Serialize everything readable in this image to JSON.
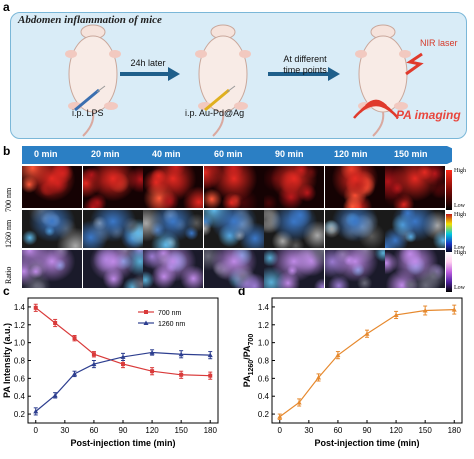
{
  "figure": {
    "panel_labels": {
      "a": "a",
      "b": "b",
      "c": "c",
      "d": "d"
    }
  },
  "panel_a": {
    "title": "Abdomen inflammation of mice",
    "arrow1_label": "24h later",
    "arrow2_label_line1": "At different",
    "arrow2_label_line2": "time points",
    "step1_label": "i.p. LPS",
    "step2_label": "i.p. Au-Pd@Ag",
    "nir_label": "NIR laser",
    "pa_label": "PA imaging",
    "colors": {
      "box": "#d9ecf7",
      "arrow": "#1f5f8b",
      "laser": "#e03a2c"
    }
  },
  "panel_b": {
    "time_labels": [
      "0 min",
      "20 min",
      "40 min",
      "60 min",
      "90 min",
      "120 min",
      "150 min"
    ],
    "row_labels": [
      "700 nm",
      "1260 nm",
      "Ratio"
    ],
    "colorbars": [
      {
        "high": "High",
        "low": "Low"
      },
      {
        "high": "High",
        "low": "Low"
      },
      {
        "high": "High",
        "low": "Low"
      }
    ],
    "banner_color": "#2b7fc4"
  },
  "chart_data": [
    {
      "type": "line",
      "panel": "c",
      "xlabel": "Post-injection time (min)",
      "ylabel": "PA Intensity (a.u.)",
      "x": [
        0,
        20,
        40,
        60,
        90,
        120,
        150,
        180
      ],
      "xticks": [
        0,
        30,
        60,
        90,
        120,
        150,
        180
      ],
      "xlim": [
        -8,
        188
      ],
      "ylim": [
        0.1,
        1.5
      ],
      "yticks": [
        0.2,
        0.4,
        0.6,
        0.8,
        1.0,
        1.2,
        1.4
      ],
      "legend_position": "top-right",
      "series": [
        {
          "name": "700  nm",
          "color": "#d93a3a",
          "values": [
            1.39,
            1.22,
            1.05,
            0.87,
            0.76,
            0.68,
            0.64,
            0.63
          ],
          "err": [
            0.04,
            0.04,
            0.03,
            0.03,
            0.04,
            0.04,
            0.04,
            0.04
          ]
        },
        {
          "name": "1260  nm",
          "color": "#2d3e8f",
          "values": [
            0.23,
            0.41,
            0.65,
            0.76,
            0.84,
            0.89,
            0.87,
            0.86
          ],
          "err": [
            0.04,
            0.03,
            0.03,
            0.04,
            0.04,
            0.03,
            0.04,
            0.04
          ]
        }
      ]
    },
    {
      "type": "line",
      "panel": "d",
      "xlabel": "Post-injection time (min)",
      "ylabel": "PA1260/PA700",
      "x": [
        0,
        20,
        40,
        60,
        90,
        120,
        150,
        180
      ],
      "xticks": [
        0,
        30,
        60,
        90,
        120,
        150,
        180
      ],
      "xlim": [
        -8,
        188
      ],
      "ylim": [
        0.1,
        1.5
      ],
      "yticks": [
        0.2,
        0.4,
        0.6,
        0.8,
        1.0,
        1.2,
        1.4
      ],
      "series": [
        {
          "color": "#e6892e",
          "values": [
            0.17,
            0.33,
            0.61,
            0.86,
            1.1,
            1.31,
            1.36,
            1.37
          ],
          "err": [
            0.03,
            0.04,
            0.04,
            0.04,
            0.04,
            0.04,
            0.05,
            0.05
          ]
        }
      ]
    }
  ]
}
